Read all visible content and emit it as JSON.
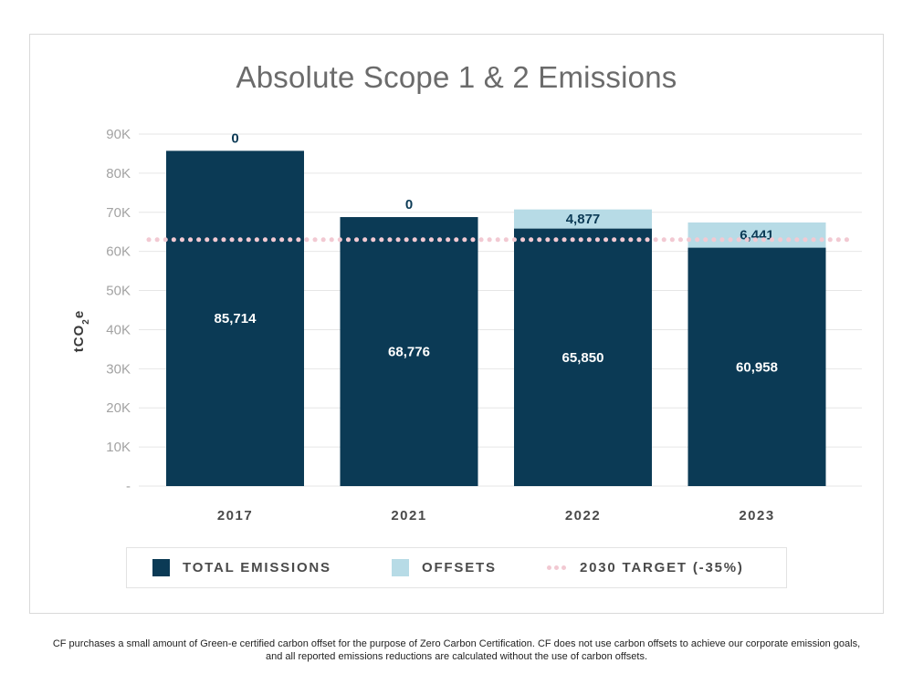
{
  "chart_data": {
    "type": "bar",
    "stacked": true,
    "title": "Absolute Scope 1 & 2 Emissions",
    "ylabel_parts": [
      "tCO",
      "2",
      "e"
    ],
    "categories": [
      "2017",
      "2021",
      "2022",
      "2023"
    ],
    "series": [
      {
        "name": "TOTAL EMISSIONS",
        "values": [
          85714,
          68776,
          65850,
          60958
        ],
        "labels": [
          "85,714",
          "68,776",
          "65,850",
          "60,958"
        ],
        "color": "#0b3a55"
      },
      {
        "name": "OFFSETS",
        "values": [
          0,
          0,
          4877,
          6441
        ],
        "labels": [
          "0",
          "0",
          "4,877",
          "6,441"
        ],
        "color": "#b7dbe6"
      }
    ],
    "target": {
      "name": "2030 TARGET (-35%)",
      "value": 63000,
      "color": "#f2c9d2"
    },
    "ylim": [
      0,
      90000
    ],
    "yticks": [
      0,
      10000,
      20000,
      30000,
      40000,
      50000,
      60000,
      70000,
      80000,
      90000
    ],
    "ytick_labels": [
      "-",
      "10K",
      "20K",
      "30K",
      "40K",
      "50K",
      "60K",
      "70K",
      "80K",
      "90K"
    ],
    "grid": true,
    "legend_position": "bottom"
  },
  "legend": {
    "total_label": "TOTAL EMISSIONS",
    "offsets_label": "OFFSETS",
    "target_label": "2030 TARGET (-35%)"
  },
  "footnote": {
    "line1": "CF purchases a small amount of Green-e certified carbon offset for the purpose of Zero Carbon Certification. CF does not use carbon offsets to achieve our corporate emission goals,",
    "line2": "and all reported emissions reductions are calculated without the use of carbon offsets."
  }
}
